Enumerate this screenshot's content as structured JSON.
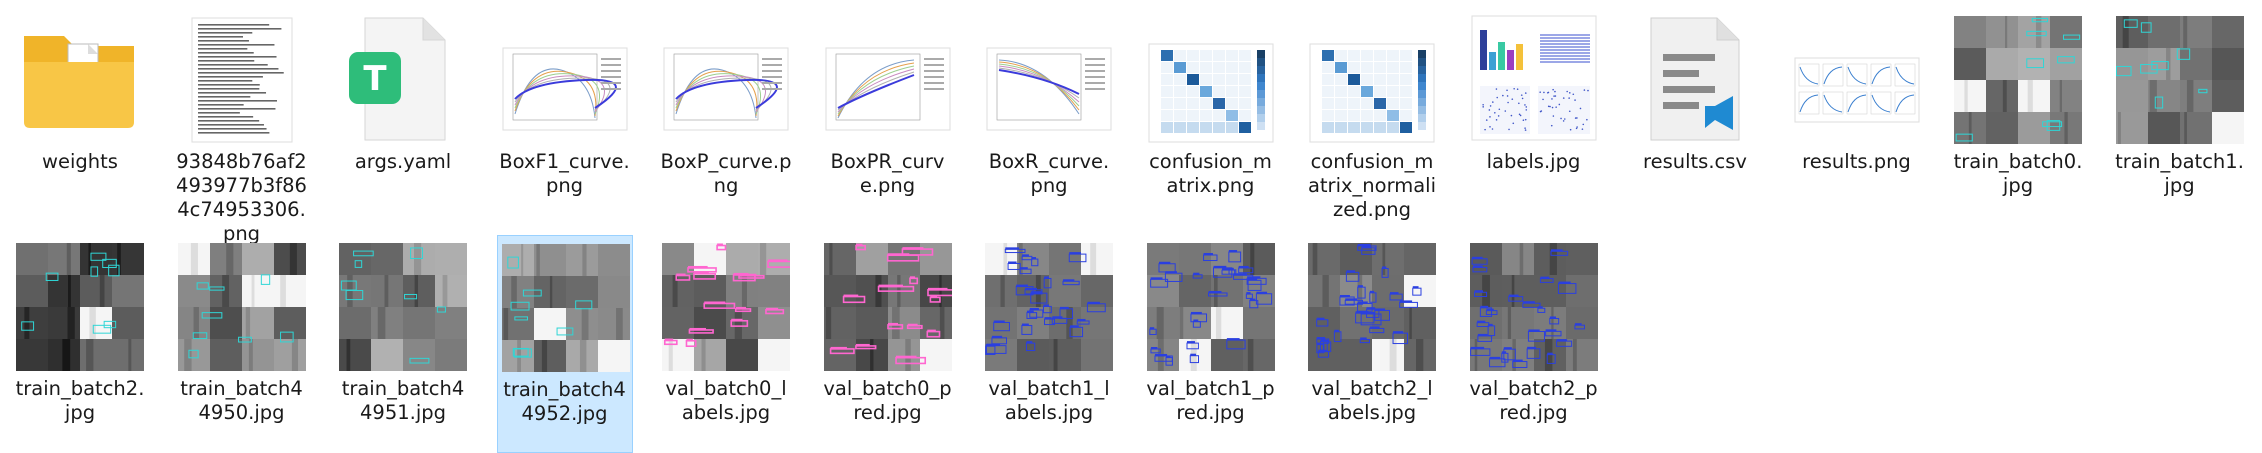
{
  "files": [
    {
      "name": "weights",
      "kind": "folder"
    },
    {
      "name": "93848b76af2493977b3f864c74953306.png",
      "kind": "doc-image"
    },
    {
      "name": "args.yaml",
      "kind": "yaml"
    },
    {
      "name": "BoxF1_curve.png",
      "kind": "curve"
    },
    {
      "name": "BoxP_curve.png",
      "kind": "curve"
    },
    {
      "name": "BoxPR_curve.png",
      "kind": "curve"
    },
    {
      "name": "BoxR_curve.png",
      "kind": "curve"
    },
    {
      "name": "confusion_matrix.png",
      "kind": "matrix"
    },
    {
      "name": "confusion_matrix_normalized.png",
      "kind": "matrix"
    },
    {
      "name": "labels.jpg",
      "kind": "labels"
    },
    {
      "name": "results.csv",
      "kind": "csv"
    },
    {
      "name": "results.png",
      "kind": "results"
    },
    {
      "name": "train_batch0.jpg",
      "kind": "batch-gray"
    },
    {
      "name": "train_batch1.jpg",
      "kind": "batch-gray"
    },
    {
      "name": "train_batch2.jpg",
      "kind": "batch-dark"
    },
    {
      "name": "train_batch44950.jpg",
      "kind": "batch-gray"
    },
    {
      "name": "train_batch44951.jpg",
      "kind": "batch-gray"
    },
    {
      "name": "train_batch44952.jpg",
      "kind": "batch-gray",
      "selected": true
    },
    {
      "name": "val_batch0_labels.jpg",
      "kind": "batch-pink"
    },
    {
      "name": "val_batch0_pred.jpg",
      "kind": "batch-pink"
    },
    {
      "name": "val_batch1_labels.jpg",
      "kind": "batch-blue"
    },
    {
      "name": "val_batch1_pred.jpg",
      "kind": "batch-blue"
    },
    {
      "name": "val_batch2_labels.jpg",
      "kind": "batch-blue"
    },
    {
      "name": "val_batch2_pred.jpg",
      "kind": "batch-blue"
    }
  ],
  "icons": {
    "folder": "folder-icon",
    "yaml": "yaml-file-icon",
    "csv": "csv-file-icon"
  },
  "colors": {
    "selection_bg": "#cce8ff",
    "selection_border": "#99d1ff",
    "folder": "#f8c646",
    "yaml_badge": "#2ebd7a",
    "vscode_blue": "#1f8ad2"
  }
}
